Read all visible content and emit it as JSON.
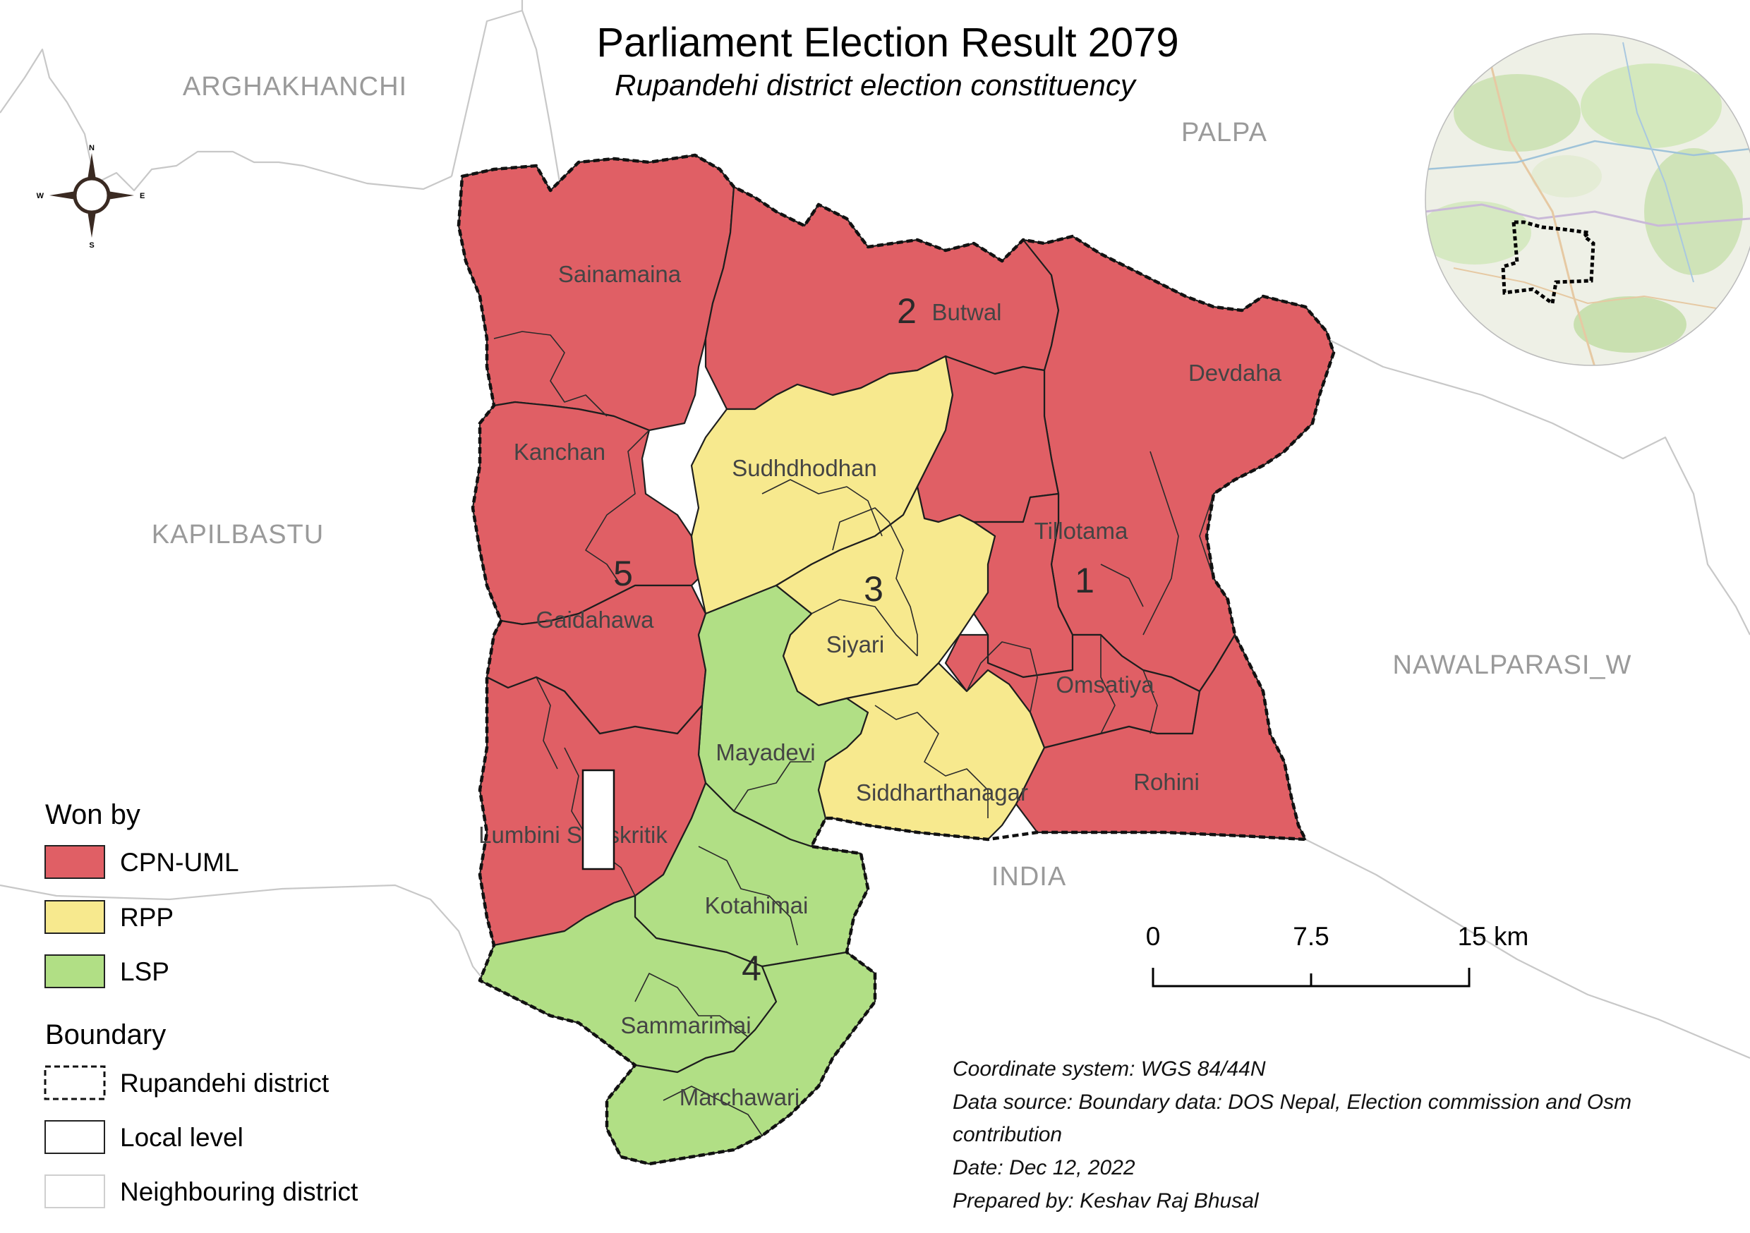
{
  "title": "Parliament Election Result 2079",
  "subtitle": "Rupandehi district election constituency",
  "colors": {
    "cpn_uml": "#e05f65",
    "rpp": "#f7e98e",
    "lsp": "#b1df85",
    "district_boundary": "#111111",
    "neighbour_boundary": "#c8c8c8"
  },
  "neighbouring_districts": [
    "ARGHAKHANCHI",
    "PALPA",
    "KAPILBASTU",
    "NAWALPARASI_W",
    "INDIA"
  ],
  "municipalities": {
    "sainamaina": "Sainamaina",
    "butwal": "Butwal",
    "devdaha": "Devdaha",
    "kanchan": "Kanchan",
    "sudhdhodhan": "Sudhdhodhan",
    "tillotama": "Tillotama",
    "gaidahawa": "Gaidahawa",
    "siyari": "Siyari",
    "omsatiya": "Omsatiya",
    "mayadevi": "Mayadevi",
    "siddharthanagar": "Siddharthanagar",
    "rohini": "Rohini",
    "lumbini": "Lumbini Sanskritik",
    "kotahimai": "Kotahimai",
    "sammarimai": "Sammarimai",
    "marchawari": "Marchawari"
  },
  "constituencies": [
    {
      "number": "1",
      "won_by": "CPN-UML"
    },
    {
      "number": "2",
      "won_by": "CPN-UML"
    },
    {
      "number": "3",
      "won_by": "RPP"
    },
    {
      "number": "4",
      "won_by": "LSP"
    },
    {
      "number": "5",
      "won_by": "CPN-UML"
    }
  ],
  "legend": {
    "won_by_heading": "Won by",
    "parties": [
      "CPN-UML",
      "RPP",
      "LSP"
    ],
    "boundary_heading": "Boundary",
    "boundaries": [
      "Rupandehi district",
      "Local level",
      "Neighbouring district"
    ]
  },
  "scale_bar": {
    "ticks": [
      "0",
      "7.5",
      "15 km"
    ]
  },
  "compass": {
    "n": "N",
    "s": "S",
    "e": "E",
    "w": "W"
  },
  "info": {
    "coordinate_system": "Coordinate system: WGS 84/44N",
    "data_source_line1": "Data source: Boundary data: DOS Nepal, Election commission and Osm",
    "data_source_line2": "contribution",
    "date": "Date: Dec 12, 2022",
    "prepared_by": "Prepared by: Keshav Raj Bhusal"
  }
}
